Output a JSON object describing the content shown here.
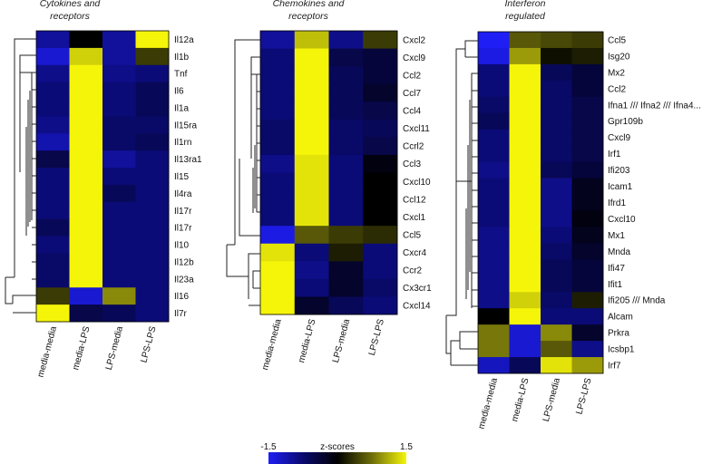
{
  "chart_data": {
    "type": "heatmap",
    "colorbar": {
      "min_label": "-1.5",
      "max_label": "1.5",
      "title": "z-scores",
      "min": -1.5,
      "max": 1.5,
      "colors": [
        "#1e1ef5",
        "#0a0a6e",
        "#000000",
        "#6e6e0a",
        "#f5f50a"
      ]
    },
    "panels": [
      {
        "title_lines": [
          "Cytokines and",
          "receptors"
        ],
        "columns": [
          "media-media",
          "media-LPS",
          "LPS-media",
          "LPS-LPS"
        ],
        "rows": [
          {
            "label": "Il12a",
            "values": [
              -1.0,
              0.0,
              -1.0,
              1.5
            ]
          },
          {
            "label": "Il1b",
            "values": [
              -1.3,
              1.3,
              -1.0,
              0.4
            ]
          },
          {
            "label": "Tnf",
            "values": [
              -0.9,
              1.5,
              -0.9,
              -0.8
            ]
          },
          {
            "label": "Il6",
            "values": [
              -0.8,
              1.5,
              -0.8,
              -0.6
            ]
          },
          {
            "label": "Il1a",
            "values": [
              -0.8,
              1.5,
              -0.8,
              -0.6
            ]
          },
          {
            "label": "Il15ra",
            "values": [
              -0.9,
              1.5,
              -0.7,
              -0.7
            ]
          },
          {
            "label": "Il1rn",
            "values": [
              -1.1,
              1.5,
              -0.7,
              -0.6
            ]
          },
          {
            "label": "Il13ra1",
            "values": [
              -0.5,
              1.5,
              -1.0,
              -0.8
            ]
          },
          {
            "label": "Il15",
            "values": [
              -0.8,
              1.5,
              -0.8,
              -0.8
            ]
          },
          {
            "label": "Il4ra",
            "values": [
              -0.8,
              1.5,
              -0.6,
              -0.8
            ]
          },
          {
            "label": "Il17r",
            "values": [
              -0.8,
              1.5,
              -0.8,
              -0.8
            ]
          },
          {
            "label": "Il17r",
            "values": [
              -0.6,
              1.5,
              -0.8,
              -0.8
            ]
          },
          {
            "label": "Il10",
            "values": [
              -0.8,
              1.5,
              -0.8,
              -0.8
            ]
          },
          {
            "label": "Il12b",
            "values": [
              -0.7,
              1.5,
              -0.8,
              -0.8
            ]
          },
          {
            "label": "Il23a",
            "values": [
              -0.7,
              1.5,
              -0.8,
              -0.8
            ]
          },
          {
            "label": "Il16",
            "values": [
              0.4,
              -1.3,
              0.9,
              -0.8
            ]
          },
          {
            "label": "Il7r",
            "values": [
              1.5,
              -0.5,
              -0.6,
              -0.8
            ]
          }
        ]
      },
      {
        "title_lines": [
          "Chemokines and",
          "receptors"
        ],
        "columns": [
          "media-media",
          "media-LPS",
          "LPS-media",
          "LPS-LPS"
        ],
        "rows": [
          {
            "label": "Cxcl2",
            "values": [
              -1.0,
              1.2,
              -0.9,
              0.4
            ]
          },
          {
            "label": "Cxcl9",
            "values": [
              -0.8,
              1.5,
              -0.5,
              -0.4
            ]
          },
          {
            "label": "Ccl2",
            "values": [
              -0.8,
              1.5,
              -0.6,
              -0.4
            ]
          },
          {
            "label": "Ccl7",
            "values": [
              -0.8,
              1.5,
              -0.6,
              -0.3
            ]
          },
          {
            "label": "Ccl4",
            "values": [
              -0.8,
              1.5,
              -0.6,
              -0.5
            ]
          },
          {
            "label": "Cxcl11",
            "values": [
              -0.7,
              1.5,
              -0.7,
              -0.6
            ]
          },
          {
            "label": "Ccrl2",
            "values": [
              -0.7,
              1.5,
              -0.7,
              -0.5
            ]
          },
          {
            "label": "Ccl3",
            "values": [
              -0.9,
              1.4,
              -0.8,
              -0.1
            ]
          },
          {
            "label": "Cxcl10",
            "values": [
              -0.8,
              1.4,
              -0.8,
              0.0
            ]
          },
          {
            "label": "Ccl12",
            "values": [
              -0.8,
              1.4,
              -0.8,
              0.0
            ]
          },
          {
            "label": "Cxcl1",
            "values": [
              -0.8,
              1.4,
              -0.8,
              0.0
            ]
          },
          {
            "label": "Ccl5",
            "values": [
              -1.4,
              0.6,
              0.4,
              0.3
            ]
          },
          {
            "label": "Cxcr4",
            "values": [
              1.4,
              -0.8,
              0.2,
              -0.8
            ]
          },
          {
            "label": "Ccr2",
            "values": [
              1.5,
              -0.9,
              -0.3,
              -0.8
            ]
          },
          {
            "label": "Cx3cr1",
            "values": [
              1.5,
              -0.8,
              -0.3,
              -0.7
            ]
          },
          {
            "label": "Cxcl14",
            "values": [
              1.5,
              -0.3,
              -0.6,
              -0.8
            ]
          }
        ]
      },
      {
        "title_lines": [
          "Interferon",
          "regulated"
        ],
        "columns": [
          "media-media",
          "media-LPS",
          "LPS-media",
          "LPS-LPS"
        ],
        "rows": [
          {
            "label": "Ccl5",
            "values": [
              -1.5,
              0.6,
              0.5,
              0.4
            ]
          },
          {
            "label": "Isg20",
            "values": [
              -1.4,
              1.0,
              0.1,
              0.2
            ]
          },
          {
            "label": "Mx2",
            "values": [
              -0.8,
              1.5,
              -0.6,
              -0.4
            ]
          },
          {
            "label": "Ccl2",
            "values": [
              -0.8,
              1.5,
              -0.7,
              -0.4
            ]
          },
          {
            "label": "Ifna1 /// Ifna2 /// Ifna4...",
            "values": [
              -0.7,
              1.5,
              -0.7,
              -0.5
            ]
          },
          {
            "label": "Gpr109b",
            "values": [
              -0.6,
              1.5,
              -0.7,
              -0.5
            ]
          },
          {
            "label": "Cxcl9",
            "values": [
              -0.8,
              1.5,
              -0.7,
              -0.5
            ]
          },
          {
            "label": "Irf1",
            "values": [
              -0.8,
              1.5,
              -0.7,
              -0.5
            ]
          },
          {
            "label": "Ifi203",
            "values": [
              -0.9,
              1.5,
              -0.6,
              -0.4
            ]
          },
          {
            "label": "Icam1",
            "values": [
              -0.8,
              1.5,
              -0.9,
              -0.2
            ]
          },
          {
            "label": "Ifrd1",
            "values": [
              -0.8,
              1.5,
              -0.9,
              -0.2
            ]
          },
          {
            "label": "Cxcl10",
            "values": [
              -0.8,
              1.5,
              -0.9,
              -0.1
            ]
          },
          {
            "label": "Mx1",
            "values": [
              -0.9,
              1.5,
              -0.8,
              -0.2
            ]
          },
          {
            "label": "Mnda",
            "values": [
              -0.9,
              1.5,
              -0.7,
              -0.3
            ]
          },
          {
            "label": "Ifi47",
            "values": [
              -0.9,
              1.5,
              -0.6,
              -0.4
            ]
          },
          {
            "label": "Ifit1",
            "values": [
              -0.9,
              1.5,
              -0.6,
              -0.4
            ]
          },
          {
            "label": "Ifi205 /// Mnda",
            "values": [
              -0.9,
              1.3,
              -0.7,
              0.2
            ]
          },
          {
            "label": "Alcam",
            "values": [
              0.0,
              1.5,
              -0.8,
              -0.8
            ]
          },
          {
            "label": "Prkra",
            "values": [
              0.8,
              -1.3,
              0.9,
              -0.3
            ]
          },
          {
            "label": "Icsbp1",
            "values": [
              0.8,
              -1.3,
              0.6,
              -0.9
            ]
          },
          {
            "label": "Irf7",
            "values": [
              -1.2,
              -0.6,
              1.4,
              1.0
            ]
          }
        ]
      }
    ]
  }
}
